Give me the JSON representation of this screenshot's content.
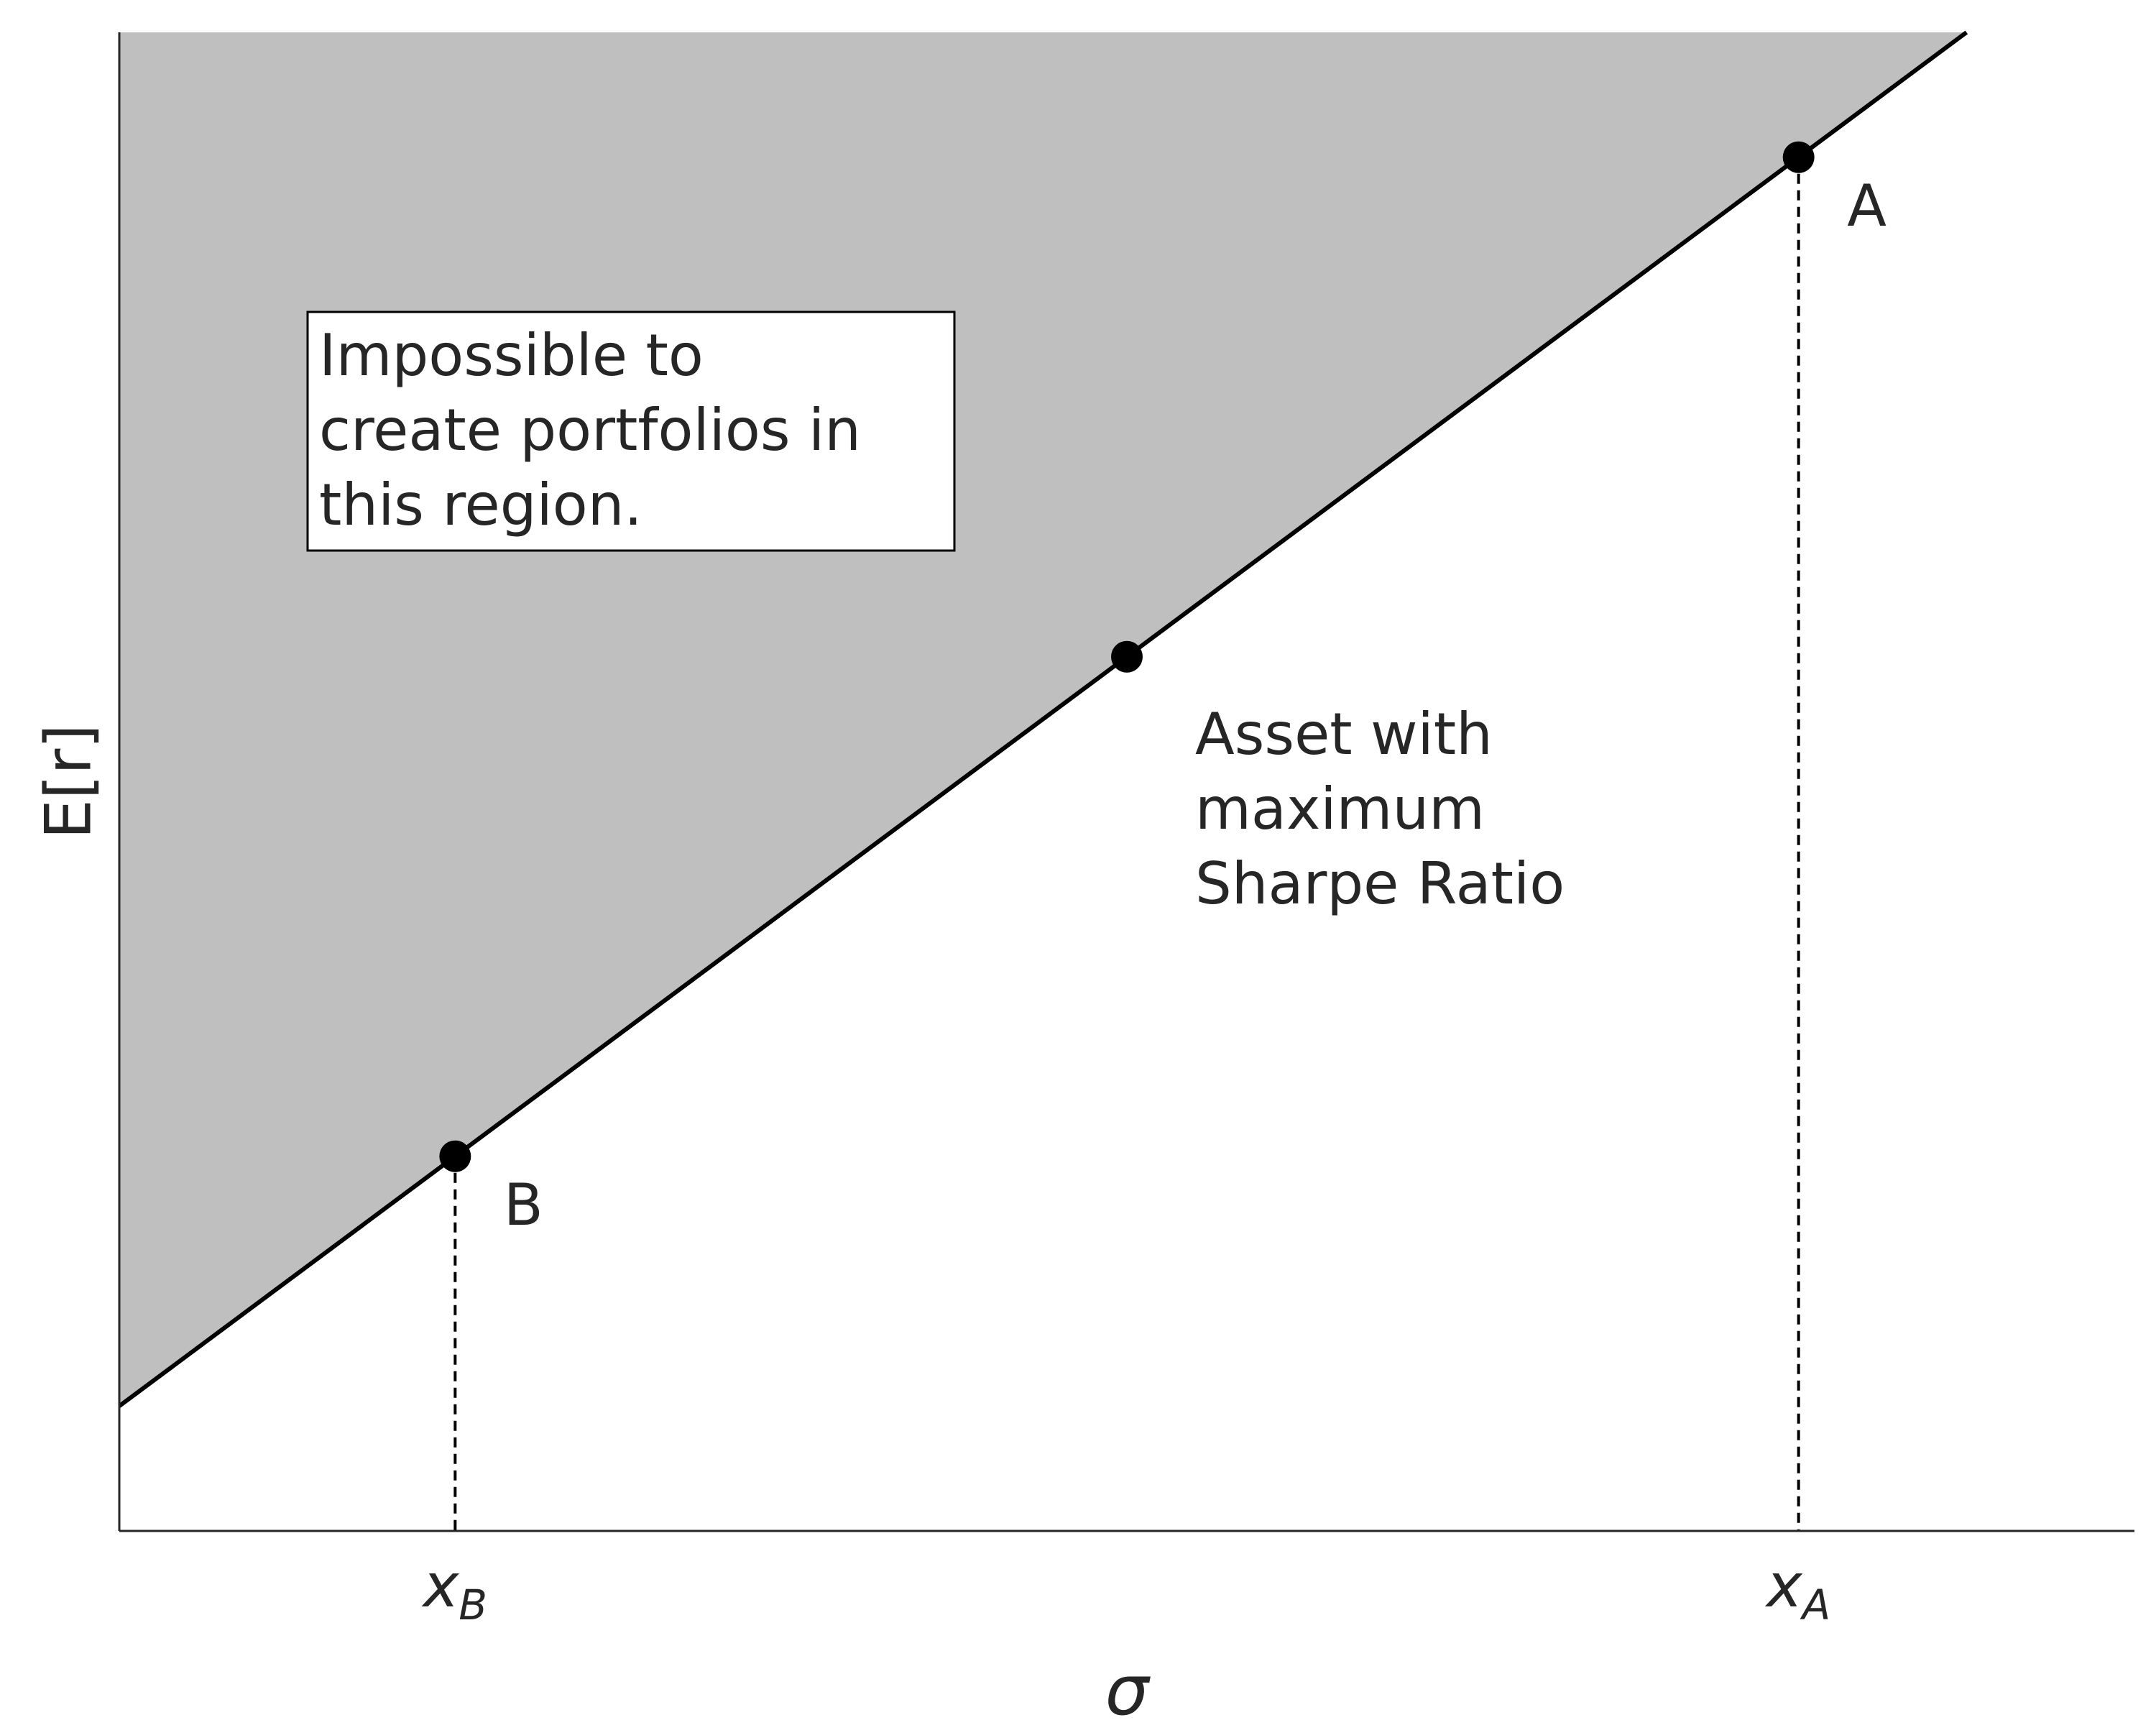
{
  "chart_data": {
    "type": "line",
    "title": "",
    "xlabel": "σ",
    "ylabel": "E[r]",
    "xlim": [
      0,
      3
    ],
    "ylim": [
      0,
      3
    ],
    "grid": false,
    "legend": "none",
    "x_ticks": [
      {
        "value": 0.5,
        "base": "x",
        "sub": "B"
      },
      {
        "value": 2.5,
        "base": "x",
        "sub": "A"
      }
    ],
    "series": [
      {
        "points": [
          {
            "x": 0.0,
            "y": 0.25
          },
          {
            "x": 2.75,
            "y": 3.0
          }
        ]
      }
    ],
    "shaded_region": {
      "description_text": [
        "Impossible to",
        "create portfolios in",
        "this region."
      ],
      "color": "#bfbfbf"
    },
    "points": [
      {
        "x": 0.5,
        "y": 0.75,
        "label": "B",
        "dropline": true
      },
      {
        "x": 1.5,
        "y": 1.75,
        "label_lines": [
          "Asset with",
          "maximum",
          "Sharpe Ratio"
        ],
        "dropline": false
      },
      {
        "x": 2.5,
        "y": 2.75,
        "label": "A",
        "dropline": true
      }
    ],
    "colors": {
      "line": "#000000",
      "text": "#262626",
      "fill": "#bfbfbf"
    }
  }
}
